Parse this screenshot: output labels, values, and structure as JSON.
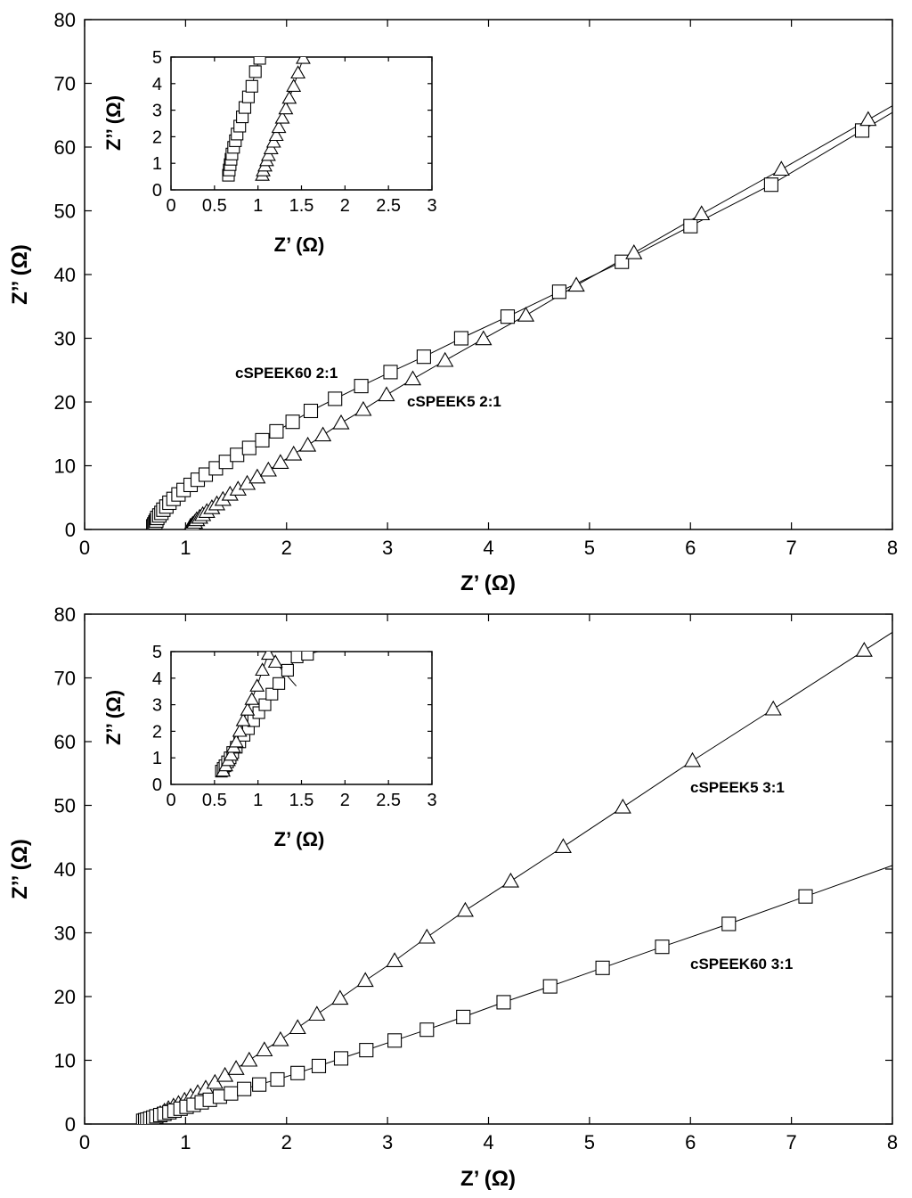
{
  "chart_data": [
    {
      "type": "scatter",
      "xlabel": "Z’ (Ω)",
      "ylabel": "Z’’ (Ω)",
      "xlim": [
        0,
        8
      ],
      "ylim": [
        0,
        80
      ],
      "xticks": [
        "0",
        "1",
        "2",
        "3",
        "4",
        "5",
        "6",
        "7",
        "8"
      ],
      "yticks": [
        "0",
        "10",
        "20",
        "30",
        "40",
        "50",
        "60",
        "70",
        "80"
      ],
      "grid": false,
      "annotations": [
        {
          "text": "cSPEEK60 2:1",
          "x": 2.15,
          "y": 24.5
        },
        {
          "text": "cSPEEK5 2:1",
          "x": 3.17,
          "y": 19.2
        }
      ],
      "series": [
        {
          "marker": "square",
          "x": [
            0.68,
            0.69,
            0.7,
            0.71,
            0.72,
            0.74,
            0.76,
            0.78,
            0.81,
            0.84,
            0.88,
            0.93,
            0.98,
            1.05,
            1.12,
            1.2,
            1.3,
            1.4,
            1.51,
            1.63,
            1.76,
            1.9,
            2.06,
            2.24,
            2.48,
            2.74,
            3.03,
            3.36,
            3.73,
            4.19,
            4.7,
            5.32,
            6.0,
            6.8,
            7.7
          ],
          "y": [
            0.5,
            0.8,
            1.1,
            1.4,
            1.8,
            2.2,
            2.6,
            3.1,
            3.6,
            4.2,
            4.8,
            5.5,
            6.2,
            7.0,
            7.8,
            8.6,
            9.6,
            10.6,
            11.7,
            12.8,
            14.0,
            15.4,
            16.9,
            18.6,
            20.5,
            22.5,
            24.7,
            27.1,
            30.0,
            33.4,
            37.3,
            42.0,
            47.6,
            54.1,
            62.6
          ]
        },
        {
          "marker": "triangle",
          "x": [
            1.05,
            1.07,
            1.09,
            1.11,
            1.14,
            1.17,
            1.21,
            1.26,
            1.31,
            1.37,
            1.44,
            1.52,
            1.61,
            1.71,
            1.82,
            1.94,
            2.07,
            2.21,
            2.36,
            2.54,
            2.76,
            2.99,
            3.25,
            3.57,
            3.95,
            4.37,
            4.87,
            5.44,
            6.11,
            6.9,
            7.76
          ],
          "y": [
            0.5,
            0.8,
            1.1,
            1.5,
            1.9,
            2.3,
            2.8,
            3.4,
            4.0,
            4.7,
            5.5,
            6.3,
            7.2,
            8.2,
            9.3,
            10.5,
            11.8,
            13.2,
            14.8,
            16.7,
            18.8,
            21.1,
            23.6,
            26.5,
            29.9,
            33.6,
            38.3,
            43.4,
            49.5,
            56.5,
            64.3
          ]
        }
      ],
      "inset": {
        "xlabel": "Z’ (Ω)",
        "ylabel": "Z’’ (Ω)",
        "xlim": [
          0,
          3
        ],
        "ylim": [
          0,
          5
        ],
        "xticks": [
          "0",
          "0.5",
          "1",
          "1.5",
          "2",
          "2.5",
          "3"
        ],
        "yticks": [
          "0",
          "1",
          "2",
          "3",
          "4",
          "5"
        ],
        "series": [
          {
            "marker": "square",
            "x": [
              0.66,
              0.67,
              0.68,
              0.69,
              0.7,
              0.72,
              0.74,
              0.76,
              0.79,
              0.82,
              0.85,
              0.89,
              0.93,
              0.97,
              1.02,
              1.08
            ],
            "y": [
              0.55,
              0.75,
              0.95,
              1.15,
              1.35,
              1.6,
              1.85,
              2.1,
              2.4,
              2.75,
              3.1,
              3.5,
              3.9,
              4.45,
              4.95,
              5.45
            ]
          },
          {
            "marker": "triangle",
            "x": [
              1.05,
              1.06,
              1.08,
              1.1,
              1.12,
              1.15,
              1.18,
              1.21,
              1.24,
              1.28,
              1.32,
              1.36,
              1.41,
              1.46,
              1.52
            ],
            "y": [
              0.55,
              0.72,
              0.9,
              1.1,
              1.3,
              1.55,
              1.8,
              2.05,
              2.35,
              2.7,
              3.05,
              3.45,
              3.9,
              4.4,
              4.95
            ]
          }
        ]
      }
    },
    {
      "type": "scatter",
      "xlabel": "Z’ (Ω)",
      "ylabel": "Z’’ (Ω)",
      "xlim": [
        0,
        8
      ],
      "ylim": [
        0,
        80
      ],
      "xticks": [
        "0",
        "1",
        "2",
        "3",
        "4",
        "5",
        "6",
        "7",
        "8"
      ],
      "yticks": [
        "0",
        "10",
        "20",
        "30",
        "40",
        "50",
        "60",
        "70",
        "80"
      ],
      "grid": false,
      "annotations": [
        {
          "text": "cSPEEK5 3:1",
          "x": 6.0,
          "y": 51.3
        },
        {
          "text": "cSPEEK60 3:1",
          "x": 6.0,
          "y": 23.5
        }
      ],
      "series": [
        {
          "marker": "triangle",
          "x": [
            0.6,
            0.63,
            0.66,
            0.69,
            0.72,
            0.75,
            0.79,
            0.83,
            0.88,
            0.93,
            0.99,
            1.05,
            1.12,
            1.2,
            1.29,
            1.39,
            1.5,
            1.63,
            1.78,
            1.94,
            2.11,
            2.3,
            2.53,
            2.78,
            3.07,
            3.39,
            3.77,
            4.22,
            4.74,
            5.33,
            6.02,
            6.82,
            7.72
          ],
          "y": [
            0.5,
            0.7,
            0.9,
            1.1,
            1.4,
            1.6,
            2.0,
            2.4,
            2.8,
            3.2,
            3.7,
            4.3,
            4.9,
            5.6,
            6.5,
            7.6,
            8.7,
            10.0,
            11.6,
            13.2,
            15.1,
            17.2,
            19.7,
            22.5,
            25.6,
            29.3,
            33.5,
            38.1,
            43.5,
            49.7,
            57.0,
            65.1,
            74.3
          ]
        },
        {
          "marker": "square",
          "x": [
            0.58,
            0.6,
            0.62,
            0.65,
            0.68,
            0.71,
            0.75,
            0.79,
            0.84,
            0.89,
            0.95,
            1.01,
            1.08,
            1.16,
            1.24,
            1.34,
            1.45,
            1.58,
            1.73,
            1.91,
            2.11,
            2.32,
            2.54,
            2.79,
            3.07,
            3.39,
            3.75,
            4.15,
            4.61,
            5.13,
            5.72,
            6.38,
            7.14
          ],
          "y": [
            0.5,
            0.6,
            0.7,
            0.85,
            1.0,
            1.2,
            1.4,
            1.6,
            1.85,
            2.1,
            2.4,
            2.7,
            3.0,
            3.4,
            3.8,
            4.3,
            4.8,
            5.5,
            6.2,
            7.0,
            8.0,
            9.1,
            10.3,
            11.6,
            13.1,
            14.8,
            16.8,
            19.1,
            21.6,
            24.5,
            27.8,
            31.4,
            35.7
          ]
        }
      ],
      "inset": {
        "xlabel": "Z’ (Ω)",
        "ylabel": "Z’’ (Ω)",
        "xlim": [
          0,
          3
        ],
        "ylim": [
          0,
          5
        ],
        "xticks": [
          "0",
          "0.5",
          "1",
          "1.5",
          "2",
          "2.5",
          "3"
        ],
        "yticks": [
          "0",
          "1",
          "2",
          "3",
          "4",
          "5"
        ],
        "series": [
          {
            "marker": "square",
            "x": [
              0.58,
              0.6,
              0.62,
              0.65,
              0.68,
              0.71,
              0.75,
              0.79,
              0.84,
              0.89,
              0.95,
              1.01,
              1.08,
              1.16,
              1.24,
              1.34,
              1.45,
              1.57
            ],
            "y": [
              0.5,
              0.6,
              0.7,
              0.85,
              1.0,
              1.2,
              1.4,
              1.6,
              1.85,
              2.1,
              2.4,
              2.7,
              3.0,
              3.4,
              3.8,
              4.3,
              4.8,
              4.9
            ]
          },
          {
            "marker": "triangle",
            "x": [
              0.6,
              0.63,
              0.66,
              0.69,
              0.72,
              0.75,
              0.79,
              0.83,
              0.88,
              0.93,
              0.99,
              1.05,
              1.12,
              1.2
            ],
            "y": [
              0.5,
              0.7,
              0.9,
              1.1,
              1.4,
              1.6,
              2.0,
              2.4,
              2.8,
              3.2,
              3.7,
              4.3,
              4.9,
              4.6
            ]
          }
        ]
      }
    }
  ]
}
